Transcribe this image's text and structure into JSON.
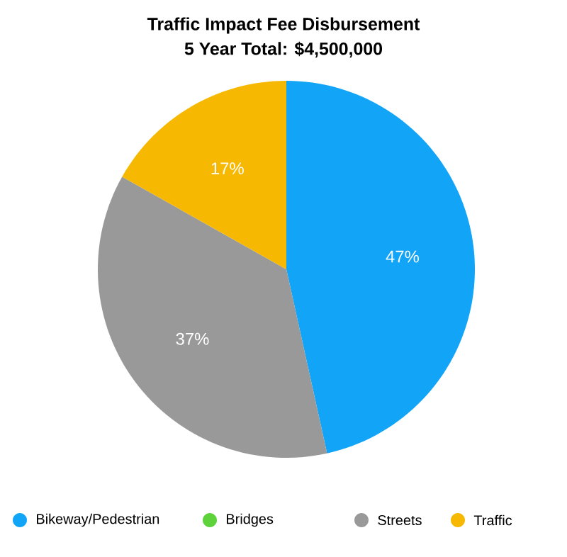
{
  "chart_data": {
    "type": "pie",
    "title": "Traffic Impact Fee Disbursement",
    "subtitle": "5 Year Total: $4,500,000",
    "categories": [
      "Bikeway/Pedestrian",
      "Bridges",
      "Streets",
      "Traffic"
    ],
    "values": [
      47,
      0,
      37,
      17
    ],
    "colors": [
      "#12a4f7",
      "#5ed23b",
      "#999999",
      "#f6b800"
    ],
    "value_labels": [
      "47%",
      null,
      "37%",
      "17%"
    ],
    "legend": "bottom"
  }
}
